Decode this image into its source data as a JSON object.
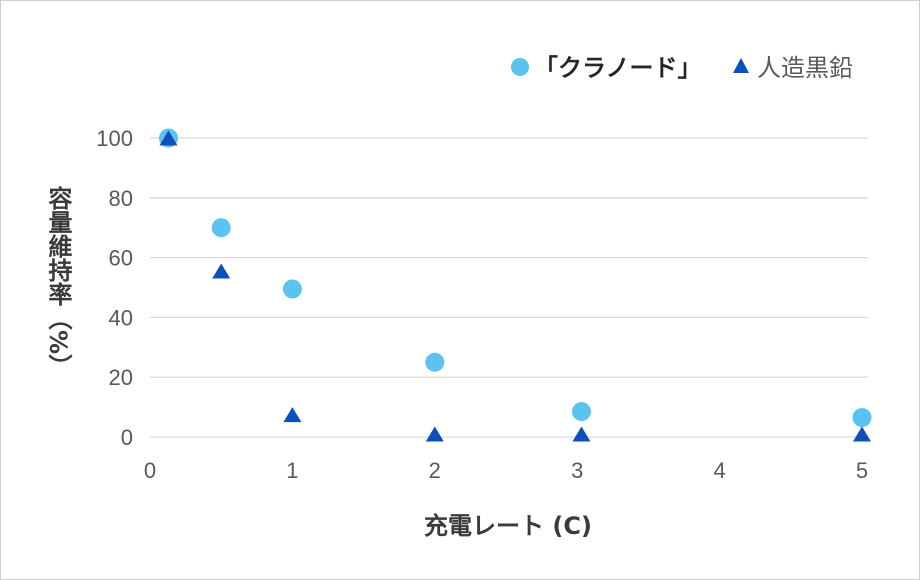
{
  "chart_data": {
    "type": "scatter",
    "xlabel": "充電レート (C)",
    "ylabel": "容量維持率（%）",
    "xlim": [
      0,
      5
    ],
    "ylim": [
      0,
      100
    ],
    "xticks": [
      0,
      1,
      2,
      3,
      4,
      5
    ],
    "yticks": [
      0,
      20,
      40,
      60,
      80,
      100
    ],
    "grid": "horizontal",
    "legend_position": "top-right",
    "series": [
      {
        "name": "「クラノード」",
        "marker": "circle",
        "color": "#5bc3ef",
        "points": [
          [
            0.13,
            100
          ],
          [
            0.5,
            70
          ],
          [
            1.0,
            49.5
          ],
          [
            2.0,
            25
          ],
          [
            3.03,
            8.5
          ],
          [
            5.0,
            6.5
          ]
        ]
      },
      {
        "name": "人造黒鉛",
        "marker": "triangle",
        "color": "#0d50b8",
        "points": [
          [
            0.13,
            99.5
          ],
          [
            0.5,
            55
          ],
          [
            1.0,
            7
          ],
          [
            2.0,
            0.5
          ],
          [
            3.03,
            0.5
          ],
          [
            5.0,
            0.5
          ]
        ]
      }
    ]
  }
}
